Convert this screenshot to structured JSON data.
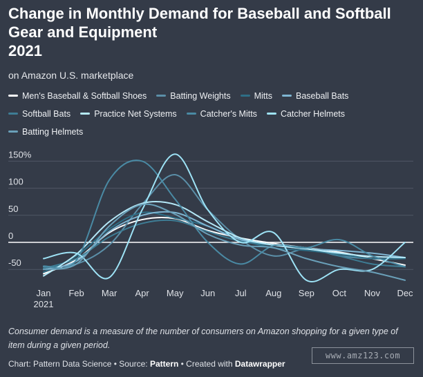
{
  "title_lines": [
    "Change in Monthly Demand for Baseball and Softball",
    "Gear and Equipment",
    "2021"
  ],
  "subtitle": "on Amazon U.S. marketplace",
  "note": "Consumer demand is a measure of the number of consumers on Amazon shopping for a given type of item during a given period.",
  "credit": {
    "prefix": "Chart: Pattern Data Science • Source: ",
    "source": "Pattern",
    "middle": " • Created with ",
    "tool": "Datawrapper"
  },
  "watermark": "www.amz123.com",
  "chart_data": {
    "type": "line",
    "title": "Change in Monthly Demand for Baseball and Softball Gear and Equipment 2021",
    "xlabel": "",
    "ylabel": "",
    "x": [
      "Jan",
      "Feb",
      "Mar",
      "Apr",
      "May",
      "Jun",
      "Jul",
      "Aug",
      "Sep",
      "Oct",
      "Nov",
      "Dec"
    ],
    "x_sublabel": "2021",
    "x_tick_labels": [
      "Jan",
      "Feb",
      "Mar",
      "Apr",
      "May",
      "Jun",
      "Jul",
      "Aug",
      "Sep",
      "Oct",
      "Nov",
      "Dec"
    ],
    "ylim": [
      -60,
      160
    ],
    "y_ticks": [
      -50,
      0,
      50,
      100,
      150
    ],
    "y_tick_labels": [
      "-50",
      "0",
      "50",
      "100",
      "150%"
    ],
    "grid": true,
    "legend": "top",
    "series": [
      {
        "name": "Men's Baseball & Softball Shoes",
        "color": "#ffffff",
        "values": [
          -58,
          -32,
          18,
          42,
          44,
          22,
          8,
          -2,
          -10,
          -18,
          -30,
          -42
        ]
      },
      {
        "name": "Batting Weights",
        "color": "#5b8fa8",
        "values": [
          -45,
          -40,
          -5,
          70,
          125,
          60,
          5,
          -25,
          -12,
          -25,
          -30,
          -30
        ]
      },
      {
        "name": "Mitts",
        "color": "#2e6e86",
        "values": [
          -55,
          -25,
          25,
          55,
          45,
          30,
          5,
          -10,
          -15,
          -22,
          -30,
          -30
        ]
      },
      {
        "name": "Baseball Bats",
        "color": "#7fb6d3",
        "values": [
          -50,
          -35,
          20,
          50,
          55,
          30,
          5,
          -5,
          -12,
          -15,
          -20,
          -28
        ]
      },
      {
        "name": "Softball Bats",
        "color": "#3e7d95",
        "values": [
          -48,
          -30,
          10,
          35,
          40,
          20,
          2,
          -5,
          -10,
          -25,
          -40,
          -45
        ]
      },
      {
        "name": "Practice Net Systems",
        "color": "#b5e9f8",
        "values": [
          -62,
          -22,
          38,
          72,
          70,
          38,
          8,
          -5,
          -12,
          -20,
          -26,
          -28
        ]
      },
      {
        "name": "Catcher's Mitts",
        "color": "#4a8aa4",
        "values": [
          -44,
          -33,
          115,
          150,
          80,
          0,
          -40,
          -6,
          -10,
          5,
          -25,
          -45
        ]
      },
      {
        "name": "Catcher Helmets",
        "color": "#9ee3f6",
        "values": [
          -30,
          -20,
          -65,
          60,
          163,
          60,
          0,
          18,
          -70,
          -50,
          -50,
          0
        ]
      },
      {
        "name": "Batting Helmets",
        "color": "#6aa0b9",
        "values": [
          -50,
          -40,
          30,
          70,
          52,
          15,
          -5,
          -10,
          -30,
          -45,
          -55,
          -70
        ]
      }
    ]
  }
}
